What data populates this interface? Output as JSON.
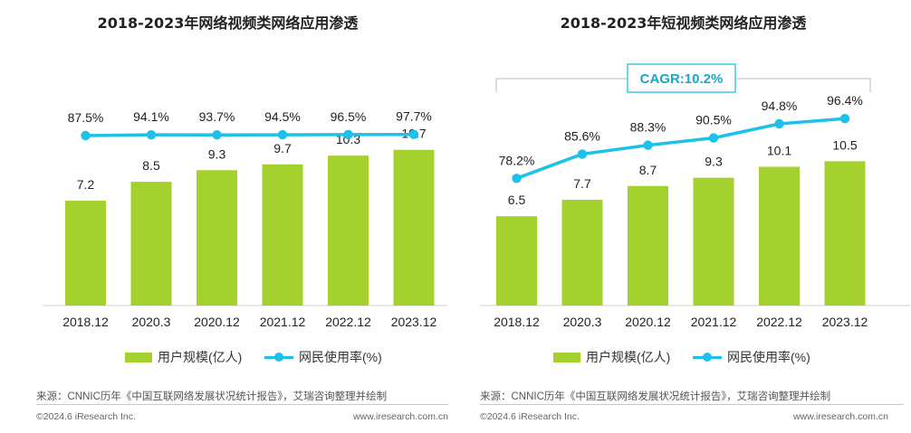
{
  "colors": {
    "bar": "#a5d12f",
    "line": "#1cc0e8",
    "cagr_box": "#3cc8ec",
    "cagr_text": "#1aa7cc",
    "bracket": "#c8c8c8"
  },
  "legend": {
    "bar_label": "用户规模(亿人)",
    "line_label": "网民使用率(%)"
  },
  "footer": {
    "source": "来源：CNNIC历年《中国互联网络发展状况统计报告》，艾瑞咨询整理并绘制",
    "copyright": "©2024.6 iResearch Inc.",
    "website": "www.iresearch.com.cn"
  },
  "chart_data": [
    {
      "type": "bar",
      "title": "2018-2023年网络视频类网络应用渗透",
      "categories": [
        "2018.12",
        "2020.3",
        "2020.12",
        "2021.12",
        "2022.12",
        "2023.12"
      ],
      "series": [
        {
          "name": "用户规模(亿人)",
          "type": "bar",
          "values": [
            7.2,
            8.5,
            9.3,
            9.7,
            10.3,
            10.7
          ],
          "labels": [
            "7.2",
            "8.5",
            "9.3",
            "9.7",
            "10.3",
            "10.7"
          ]
        },
        {
          "name": "网民使用率(%)",
          "type": "line",
          "values": [
            87.5,
            94.1,
            93.7,
            94.5,
            96.5,
            97.7
          ],
          "labels": [
            "87.5%",
            "94.1%",
            "93.7%",
            "94.5%",
            "96.5%",
            "97.7%"
          ]
        }
      ],
      "annotation": ""
    },
    {
      "type": "bar",
      "title": "2018-2023年短视频类网络应用渗透",
      "categories": [
        "2018.12",
        "2020.3",
        "2020.12",
        "2021.12",
        "2022.12",
        "2023.12"
      ],
      "series": [
        {
          "name": "用户规模(亿人)",
          "type": "bar",
          "values": [
            6.5,
            7.7,
            8.7,
            9.3,
            10.1,
            10.5
          ],
          "labels": [
            "6.5",
            "7.7",
            "8.7",
            "9.3",
            "10.1",
            "10.5"
          ]
        },
        {
          "name": "网民使用率(%)",
          "type": "line",
          "values": [
            78.2,
            85.6,
            88.3,
            90.5,
            94.8,
            96.4
          ],
          "labels": [
            "78.2%",
            "85.6%",
            "88.3%",
            "90.5%",
            "94.8%",
            "96.4%"
          ]
        }
      ],
      "annotation": "CAGR:10.2%"
    }
  ]
}
